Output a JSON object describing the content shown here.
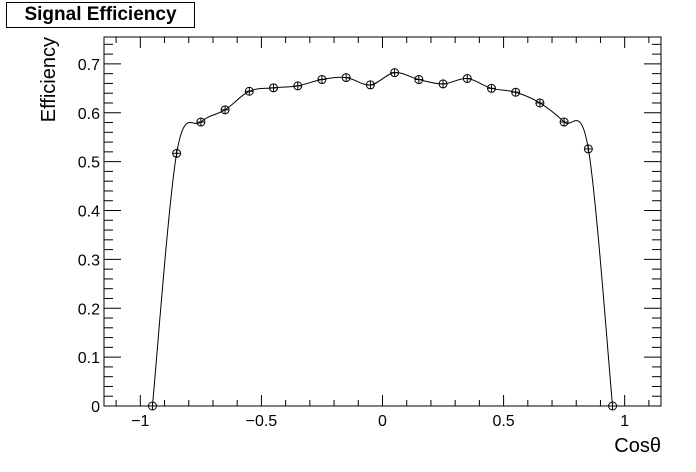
{
  "chart_data": {
    "type": "scatter",
    "title": "Signal Efficiency",
    "xlabel": "Cosθ",
    "ylabel": "Efficiency",
    "xlim": [
      -1.15,
      1.15
    ],
    "ylim": [
      0,
      0.755
    ],
    "x_ticks": [
      {
        "value": -1,
        "label": "−1"
      },
      {
        "value": -0.5,
        "label": "−0.5"
      },
      {
        "value": 0,
        "label": "0"
      },
      {
        "value": 0.5,
        "label": "0.5"
      },
      {
        "value": 1,
        "label": "1"
      }
    ],
    "y_ticks": [
      {
        "value": 0,
        "label": "0"
      },
      {
        "value": 0.1,
        "label": "0.1"
      },
      {
        "value": 0.2,
        "label": "0.2"
      },
      {
        "value": 0.3,
        "label": "0.3"
      },
      {
        "value": 0.4,
        "label": "0.4"
      },
      {
        "value": 0.5,
        "label": "0.5"
      },
      {
        "value": 0.6,
        "label": "0.6"
      },
      {
        "value": 0.7,
        "label": "0.7"
      }
    ],
    "grid": false,
    "legend": "none",
    "series": [
      {
        "marker": "open-circle",
        "line": "smooth-curve",
        "x": [
          -0.95,
          -0.85,
          -0.75,
          -0.65,
          -0.55,
          -0.45,
          -0.35,
          -0.25,
          -0.15,
          -0.05,
          0.05,
          0.15,
          0.25,
          0.35,
          0.45,
          0.55,
          0.65,
          0.75,
          0.85,
          0.95
        ],
        "y": [
          0.0,
          0.517,
          0.581,
          0.606,
          0.644,
          0.651,
          0.655,
          0.668,
          0.672,
          0.657,
          0.682,
          0.668,
          0.659,
          0.67,
          0.65,
          0.642,
          0.62,
          0.581,
          0.526,
          0.0
        ]
      }
    ]
  }
}
